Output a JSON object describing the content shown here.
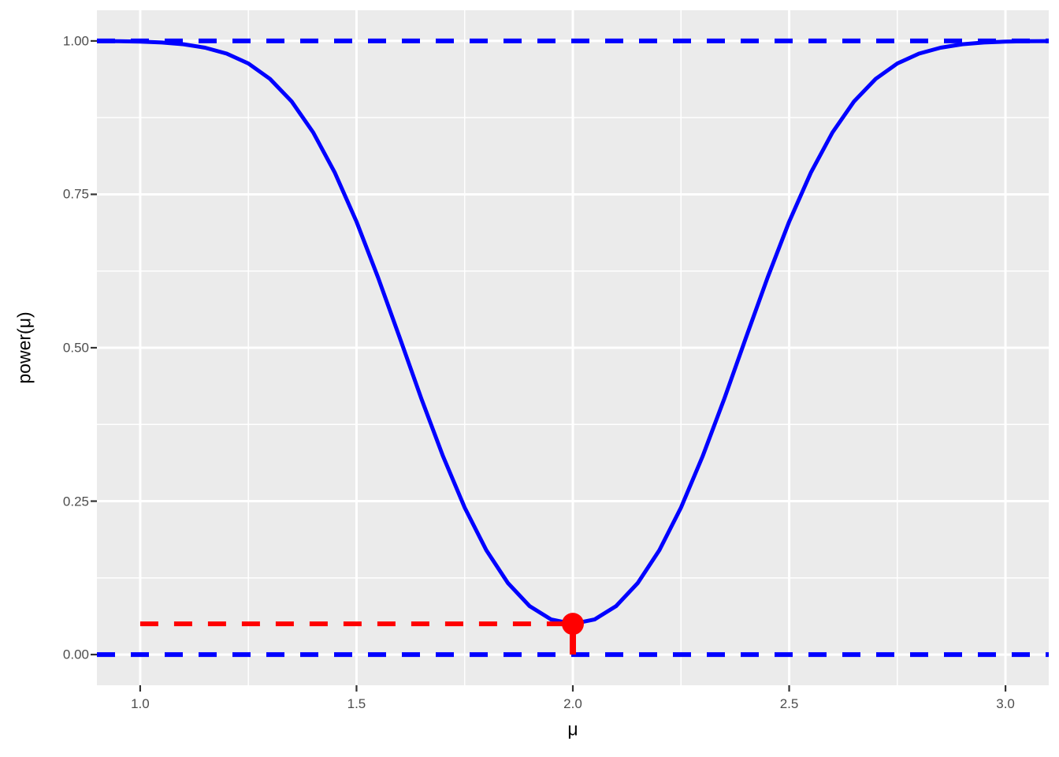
{
  "figure": {
    "background": "#FFFFFF",
    "panel_background": "#EBEBEB",
    "grid_color": "#FFFFFF",
    "tick_mark_color": "#333333",
    "tick_label_color": "#4D4D4D",
    "axis_title_color": "#000000",
    "curve_color": "#0000FF",
    "accent_color": "#FF0000"
  },
  "chart_data": {
    "type": "line",
    "title": "",
    "xlabel": "μ",
    "ylabel": "power(μ)",
    "xlim": [
      0.9,
      3.1
    ],
    "ylim": [
      -0.05,
      1.05
    ],
    "grid": true,
    "legend": "none",
    "x_ticks": {
      "values": [
        1.0,
        1.5,
        2.0,
        2.5,
        3.0
      ],
      "labels": [
        "1.0",
        "1.5",
        "2.0",
        "2.5",
        "3.0"
      ]
    },
    "y_ticks": {
      "values": [
        0.0,
        0.25,
        0.5,
        0.75,
        1.0
      ],
      "labels": [
        "0.00",
        "0.25",
        "0.50",
        "0.75",
        "1.00"
      ]
    },
    "x_minor_breaks": [
      1.25,
      1.75,
      2.25,
      2.75
    ],
    "y_minor_breaks": [
      0.125,
      0.375,
      0.625,
      0.875
    ],
    "series": [
      {
        "name": "power-curve",
        "color": "#0000FF",
        "style": "solid",
        "width": 5,
        "x": [
          0.9,
          0.95,
          1.0,
          1.05,
          1.1,
          1.15,
          1.2,
          1.25,
          1.3,
          1.35,
          1.4,
          1.45,
          1.5,
          1.55,
          1.6,
          1.65,
          1.7,
          1.75,
          1.8,
          1.85,
          1.9,
          1.95,
          2.0,
          2.05,
          2.1,
          2.15,
          2.2,
          2.25,
          2.3,
          2.35,
          2.4,
          2.45,
          2.5,
          2.55,
          2.6,
          2.65,
          2.7,
          2.75,
          2.8,
          2.85,
          2.9,
          2.95,
          3.0,
          3.05,
          3.1
        ],
        "y": [
          0.9998,
          0.9995,
          0.9988,
          0.9974,
          0.9946,
          0.989,
          0.9793,
          0.9633,
          0.9382,
          0.9015,
          0.8508,
          0.7852,
          0.7054,
          0.6141,
          0.516,
          0.4169,
          0.3231,
          0.2396,
          0.17,
          0.1165,
          0.079,
          0.0572,
          0.05,
          0.0572,
          0.079,
          0.1165,
          0.17,
          0.2396,
          0.3231,
          0.4169,
          0.516,
          0.6141,
          0.7054,
          0.7852,
          0.8508,
          0.9015,
          0.9382,
          0.9633,
          0.9793,
          0.989,
          0.9946,
          0.9974,
          0.9988,
          0.9995,
          0.9998
        ]
      }
    ],
    "reference_lines": [
      {
        "name": "power-upper-limit-line",
        "orientation": "horizontal",
        "y": 1.0,
        "color": "#0000FF",
        "style": "dashed",
        "width": 6
      },
      {
        "name": "power-lower-limit-line",
        "orientation": "horizontal",
        "y": 0.0,
        "color": "#0000FF",
        "style": "dashed",
        "width": 6
      }
    ],
    "segments": [
      {
        "name": "alpha-level-segment",
        "x1": 1.0,
        "y1": 0.05,
        "x2": 2.0,
        "y2": 0.05,
        "color": "#FF0000",
        "style": "dashed",
        "width": 6
      },
      {
        "name": "null-mu-drop-segment",
        "x1": 2.0,
        "y1": 0.0,
        "x2": 2.0,
        "y2": 0.05,
        "color": "#FF0000",
        "style": "solid",
        "width": 8
      }
    ],
    "points": [
      {
        "name": "alpha-at-null-point",
        "x": 2.0,
        "y": 0.05,
        "color": "#FF0000",
        "radius": 14
      }
    ]
  }
}
